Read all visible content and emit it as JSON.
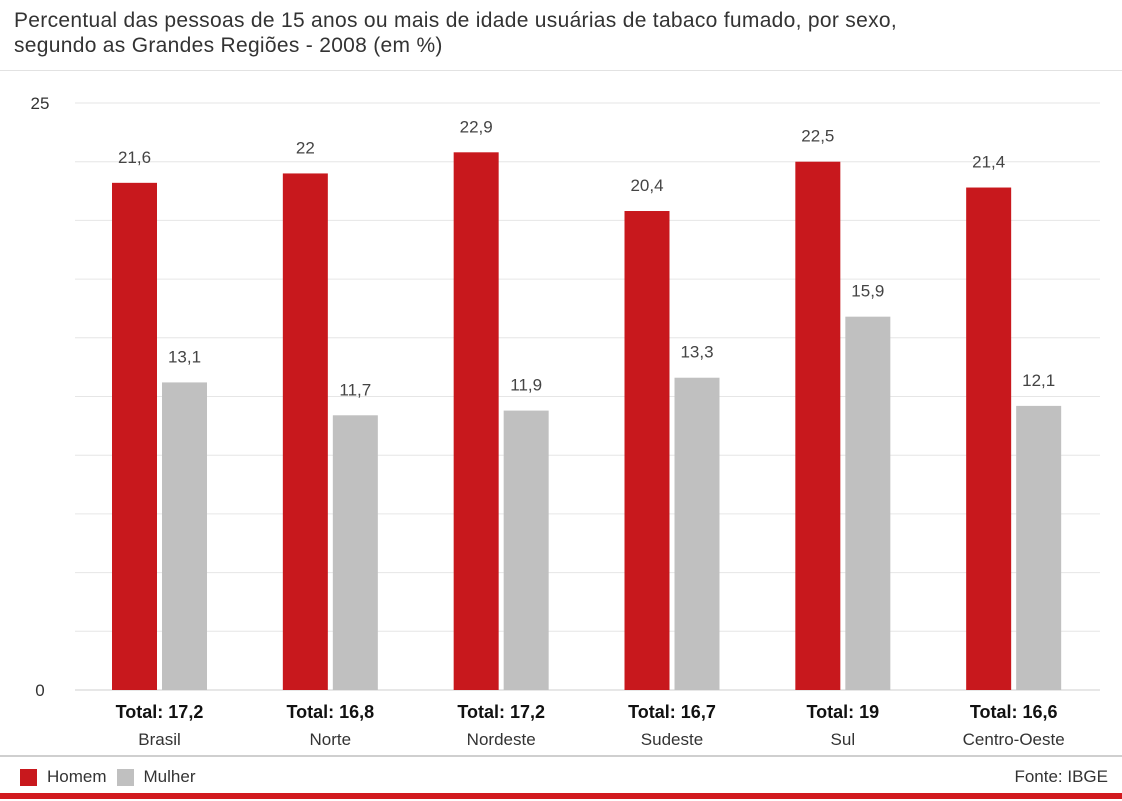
{
  "title_lines": [
    "Percentual das pessoas de 15 anos ou mais de idade usuárias de tabaco fumado, por sexo,",
    "segundo as Grandes Regiões - 2008 (em %)"
  ],
  "source": "Fonte: IBGE",
  "colors": {
    "homem": "#c8181d",
    "mulher": "#c0c0c0",
    "accent": "#d21a1f"
  },
  "chart_data": {
    "type": "bar",
    "title": "Percentual das pessoas de 15 anos ou mais de idade usuárias de tabaco fumado, por sexo, segundo as Grandes Regiões - 2008 (em %)",
    "categories": [
      "Brasil",
      "Norte",
      "Nordeste",
      "Sudeste",
      "Sul",
      "Centro-Oeste"
    ],
    "totals": [
      "Total: 17,2",
      "Total: 16,8",
      "Total: 17,2",
      "Total: 16,7",
      "Total: 19",
      "Total: 16,6"
    ],
    "series": [
      {
        "name": "Homem",
        "values": [
          21.6,
          22,
          22.9,
          20.4,
          22.5,
          21.4
        ],
        "labels": [
          "21,6",
          "22",
          "22,9",
          "20,4",
          "22,5",
          "21,4"
        ]
      },
      {
        "name": "Mulher",
        "values": [
          13.1,
          11.7,
          11.9,
          13.3,
          15.9,
          12.1
        ],
        "labels": [
          "13,1",
          "11,7",
          "11,9",
          "13,3",
          "15,9",
          "12,1"
        ]
      }
    ],
    "ylim": [
      0,
      25
    ],
    "y_ticks": [
      "0",
      "25"
    ],
    "xlabel": "",
    "ylabel": "",
    "grid": true,
    "legend": "bottom-left"
  }
}
